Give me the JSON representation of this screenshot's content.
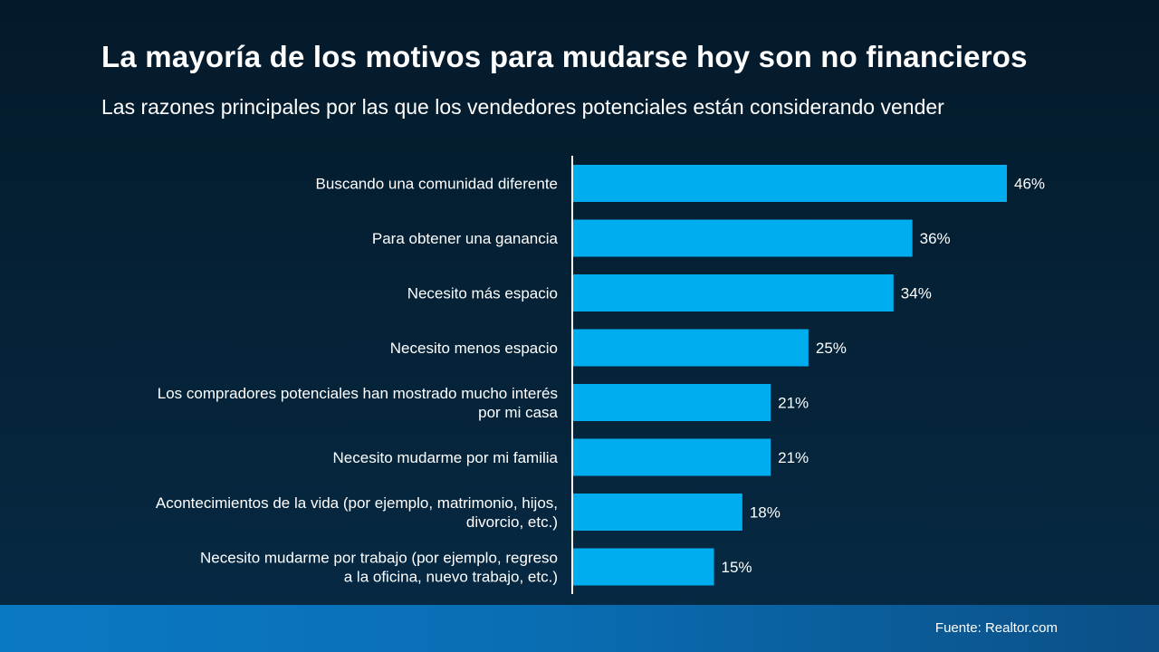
{
  "header": {
    "title": "La mayoría de los motivos para mudarse hoy son no financieros",
    "subtitle": "Las razones principales por las que los vendedores potenciales están considerando vender"
  },
  "footer": {
    "source": "Fuente: Realtor.com"
  },
  "colors": {
    "bar": "#00adef",
    "axis": "#ffffff",
    "text": "#ffffff"
  },
  "chart_data": {
    "type": "bar",
    "orientation": "horizontal",
    "title": "La mayoría de los motivos para mudarse hoy son no financieros",
    "subtitle": "Las razones principales por las que los vendedores potenciales están considerando vender",
    "categories": [
      [
        "Buscando una comunidad diferente"
      ],
      [
        "Para obtener una ganancia"
      ],
      [
        "Necesito más espacio"
      ],
      [
        "Necesito menos espacio"
      ],
      [
        "Los compradores potenciales han mostrado mucho interés",
        "por mi casa"
      ],
      [
        "Necesito mudarme por mi familia"
      ],
      [
        "Acontecimientos de la vida (por ejemplo, matrimonio, hijos,",
        "divorcio, etc.)"
      ],
      [
        "Necesito mudarme por trabajo (por ejemplo, regreso",
        "a la oficina, nuevo trabajo, etc.)"
      ]
    ],
    "values": [
      46,
      36,
      34,
      25,
      21,
      21,
      18,
      15
    ],
    "data_labels": [
      "46%",
      "36%",
      "34%",
      "25%",
      "21%",
      "21%",
      "18%",
      "15%"
    ],
    "unit": "%",
    "xlim": [
      0,
      46
    ],
    "grid": false,
    "legend": "none"
  }
}
